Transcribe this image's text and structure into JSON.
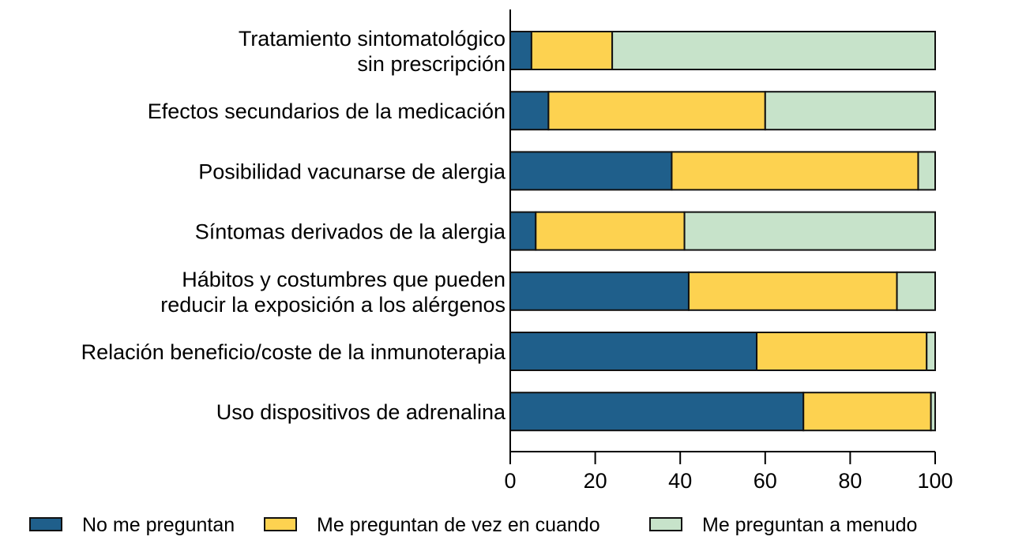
{
  "chart_data": {
    "type": "bar",
    "orientation": "horizontal",
    "stacked": true,
    "title": "",
    "xlabel": "",
    "ylabel": "",
    "xlim": [
      0,
      100
    ],
    "xticks": [
      "0",
      "20",
      "40",
      "60",
      "80",
      "100"
    ],
    "grid": false,
    "legend_position": "bottom",
    "categories": [
      [
        "Tratamiento sintomatológico",
        "sin prescripción"
      ],
      [
        "Efectos secundarios de la medicación"
      ],
      [
        "Posibilidad vacunarse de alergia"
      ],
      [
        "Síntomas derivados de la alergia"
      ],
      [
        "Hábitos y costumbres que pueden",
        "reducir la exposición a los alérgenos"
      ],
      [
        "Relación beneficio/coste de la inmunoterapia"
      ],
      [
        "Uso dispositivos de adrenalina"
      ]
    ],
    "series": [
      {
        "name": "No me preguntan",
        "color": "#1f5f8b",
        "values": [
          5,
          9,
          38,
          6,
          42,
          58,
          69
        ]
      },
      {
        "name": "Me preguntan de vez en cuando",
        "color": "#fdd250",
        "values": [
          19,
          51,
          58,
          35,
          49,
          40,
          30
        ]
      },
      {
        "name": "Me preguntan a menudo",
        "color": "#c7e3ca",
        "values": [
          76,
          40,
          4,
          59,
          9,
          2,
          1
        ]
      }
    ]
  }
}
